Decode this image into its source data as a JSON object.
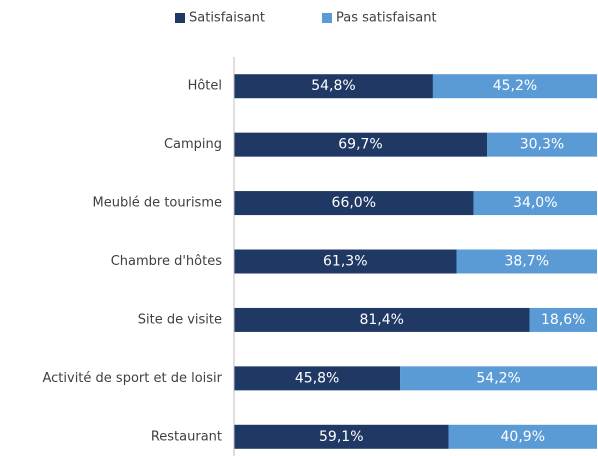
{
  "chart_data": {
    "type": "stacked-bar-horizontal",
    "categories": [
      "Hôtel",
      "Camping",
      "Meublé de tourisme",
      "Chambre d'hôtes",
      "Site de visite",
      "Activité de sport et de loisir",
      "Restaurant"
    ],
    "series": [
      {
        "name": "Satisfaisant",
        "color": "#1f3864",
        "values": [
          54.8,
          69.7,
          66.0,
          61.3,
          81.4,
          45.8,
          59.1
        ],
        "value_labels": [
          "54,8%",
          "69,7%",
          "66,0%",
          "61,3%",
          "81,4%",
          "45,8%",
          "59,1%"
        ]
      },
      {
        "name": "Pas satisfaisant",
        "color": "#5b9bd5",
        "values": [
          45.2,
          30.3,
          34.0,
          38.7,
          18.6,
          54.2,
          40.9
        ],
        "value_labels": [
          "45,2%",
          "30,3%",
          "34,0%",
          "38,7%",
          "18,6%",
          "54,2%",
          "40,9%"
        ]
      }
    ],
    "xlim": [
      0,
      100
    ],
    "legend": "top"
  }
}
